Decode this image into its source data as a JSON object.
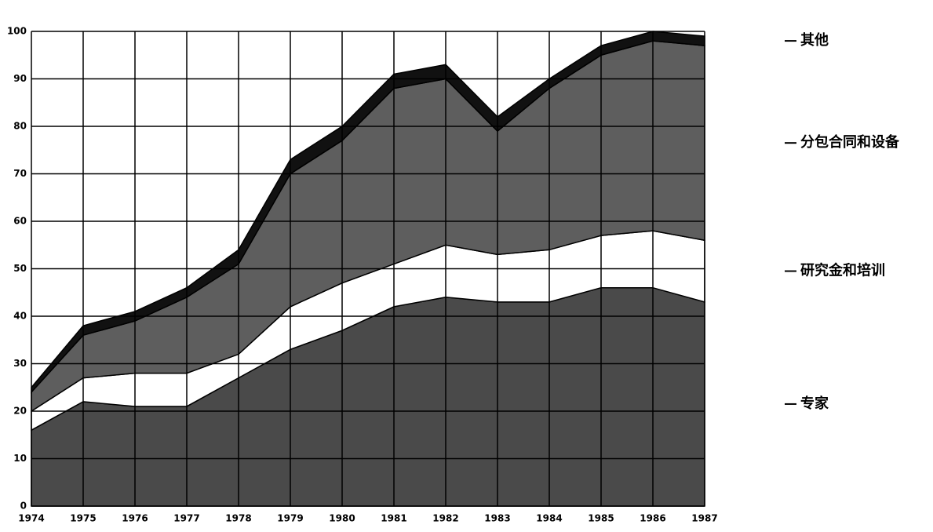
{
  "chart_data": {
    "type": "stacked_area",
    "categories": [
      "1974",
      "1975",
      "1976",
      "1977",
      "1978",
      "1979",
      "1980",
      "1981",
      "1982",
      "1983",
      "1984",
      "1985",
      "1986",
      "1987"
    ],
    "series": [
      {
        "name": "专家",
        "color": "#4a4a4a",
        "values": [
          16,
          22,
          21,
          21,
          27,
          33,
          37,
          42,
          44,
          43,
          43,
          46,
          46,
          43
        ]
      },
      {
        "name": "研究金和培训",
        "color": "#ffffff",
        "values": [
          4,
          5,
          7,
          7,
          5,
          9,
          10,
          9,
          11,
          10,
          11,
          11,
          12,
          13
        ]
      },
      {
        "name": "分包合同和设备",
        "color": "#5e5e5e",
        "values": [
          4,
          9,
          11,
          16,
          19,
          28,
          30,
          37,
          35,
          26,
          34,
          38,
          40,
          41
        ]
      },
      {
        "name": "其他",
        "color": "#111111",
        "values": [
          1,
          2,
          2,
          2,
          3,
          3,
          3,
          3,
          3,
          3,
          2,
          2,
          2,
          2
        ]
      }
    ],
    "ylim": [
      0,
      100
    ],
    "yticks": [
      0,
      10,
      20,
      30,
      40,
      50,
      60,
      70,
      80,
      90,
      100
    ],
    "grid": true
  }
}
